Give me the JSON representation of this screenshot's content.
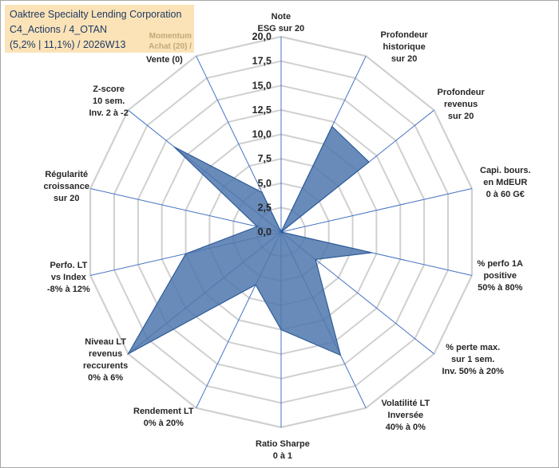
{
  "title": {
    "line1": "Oaktree Specialty Lending Corporation",
    "line2": "C4_Actions / 4_OTAN",
    "line3": "(5,2% | 11,1%) / 2026W13",
    "momentum": "Momentum\nAchat (20) /"
  },
  "colors": {
    "fill": "#4f77ad",
    "stroke": "#2e5c99",
    "grid": "#d0d0d0",
    "spoke": "#4472c4",
    "title_bg": "#fbe3b7"
  },
  "chart_data": {
    "type": "radar",
    "rmax": 20,
    "ticks": [
      "0,0",
      "2,5",
      "5,0",
      "7,5",
      "10,0",
      "12,5",
      "15,0",
      "17,5",
      "20,0"
    ],
    "tick_values": [
      0,
      2.5,
      5,
      7.5,
      10,
      12.5,
      15,
      17.5,
      20
    ],
    "axes": [
      {
        "label": "Note\nESG sur 20",
        "value": 0
      },
      {
        "label": "Profondeur\nhistorique\nsur 20",
        "value": 12
      },
      {
        "label": "Profondeur\nrevenus\nsur 20",
        "value": 11.5
      },
      {
        "label": "Capi. bours.\nen MdEUR\n0 à 60 G€",
        "value": 0
      },
      {
        "label": "% perfo 1A\npositive\n50% à 80%",
        "value": 9.5
      },
      {
        "label": "% perte max.\nsur 1 sem.\nInv. 50% à 20%",
        "value": 4.5
      },
      {
        "label": "Volatilité LT\nInversée\n40% à 0%",
        "value": 14
      },
      {
        "label": "Ratio Sharpe\n0 à 1",
        "value": 10
      },
      {
        "label": "Rendement LT\n0% à 20%",
        "value": 6
      },
      {
        "label": "Niveau LT\nrevenus\nreccurents\n0% à 6%",
        "value": 20
      },
      {
        "label": "Perfo. LT\nvs Index\n-8% à 12%",
        "value": 10
      },
      {
        "label": "Régularité\ncroissance\nsur 20",
        "value": 2.5
      },
      {
        "label": "Z-score\n10 sem.\nInv. 2 à -2",
        "value": 14
      },
      {
        "label": "Vente (0)",
        "value": 4.5
      }
    ]
  }
}
